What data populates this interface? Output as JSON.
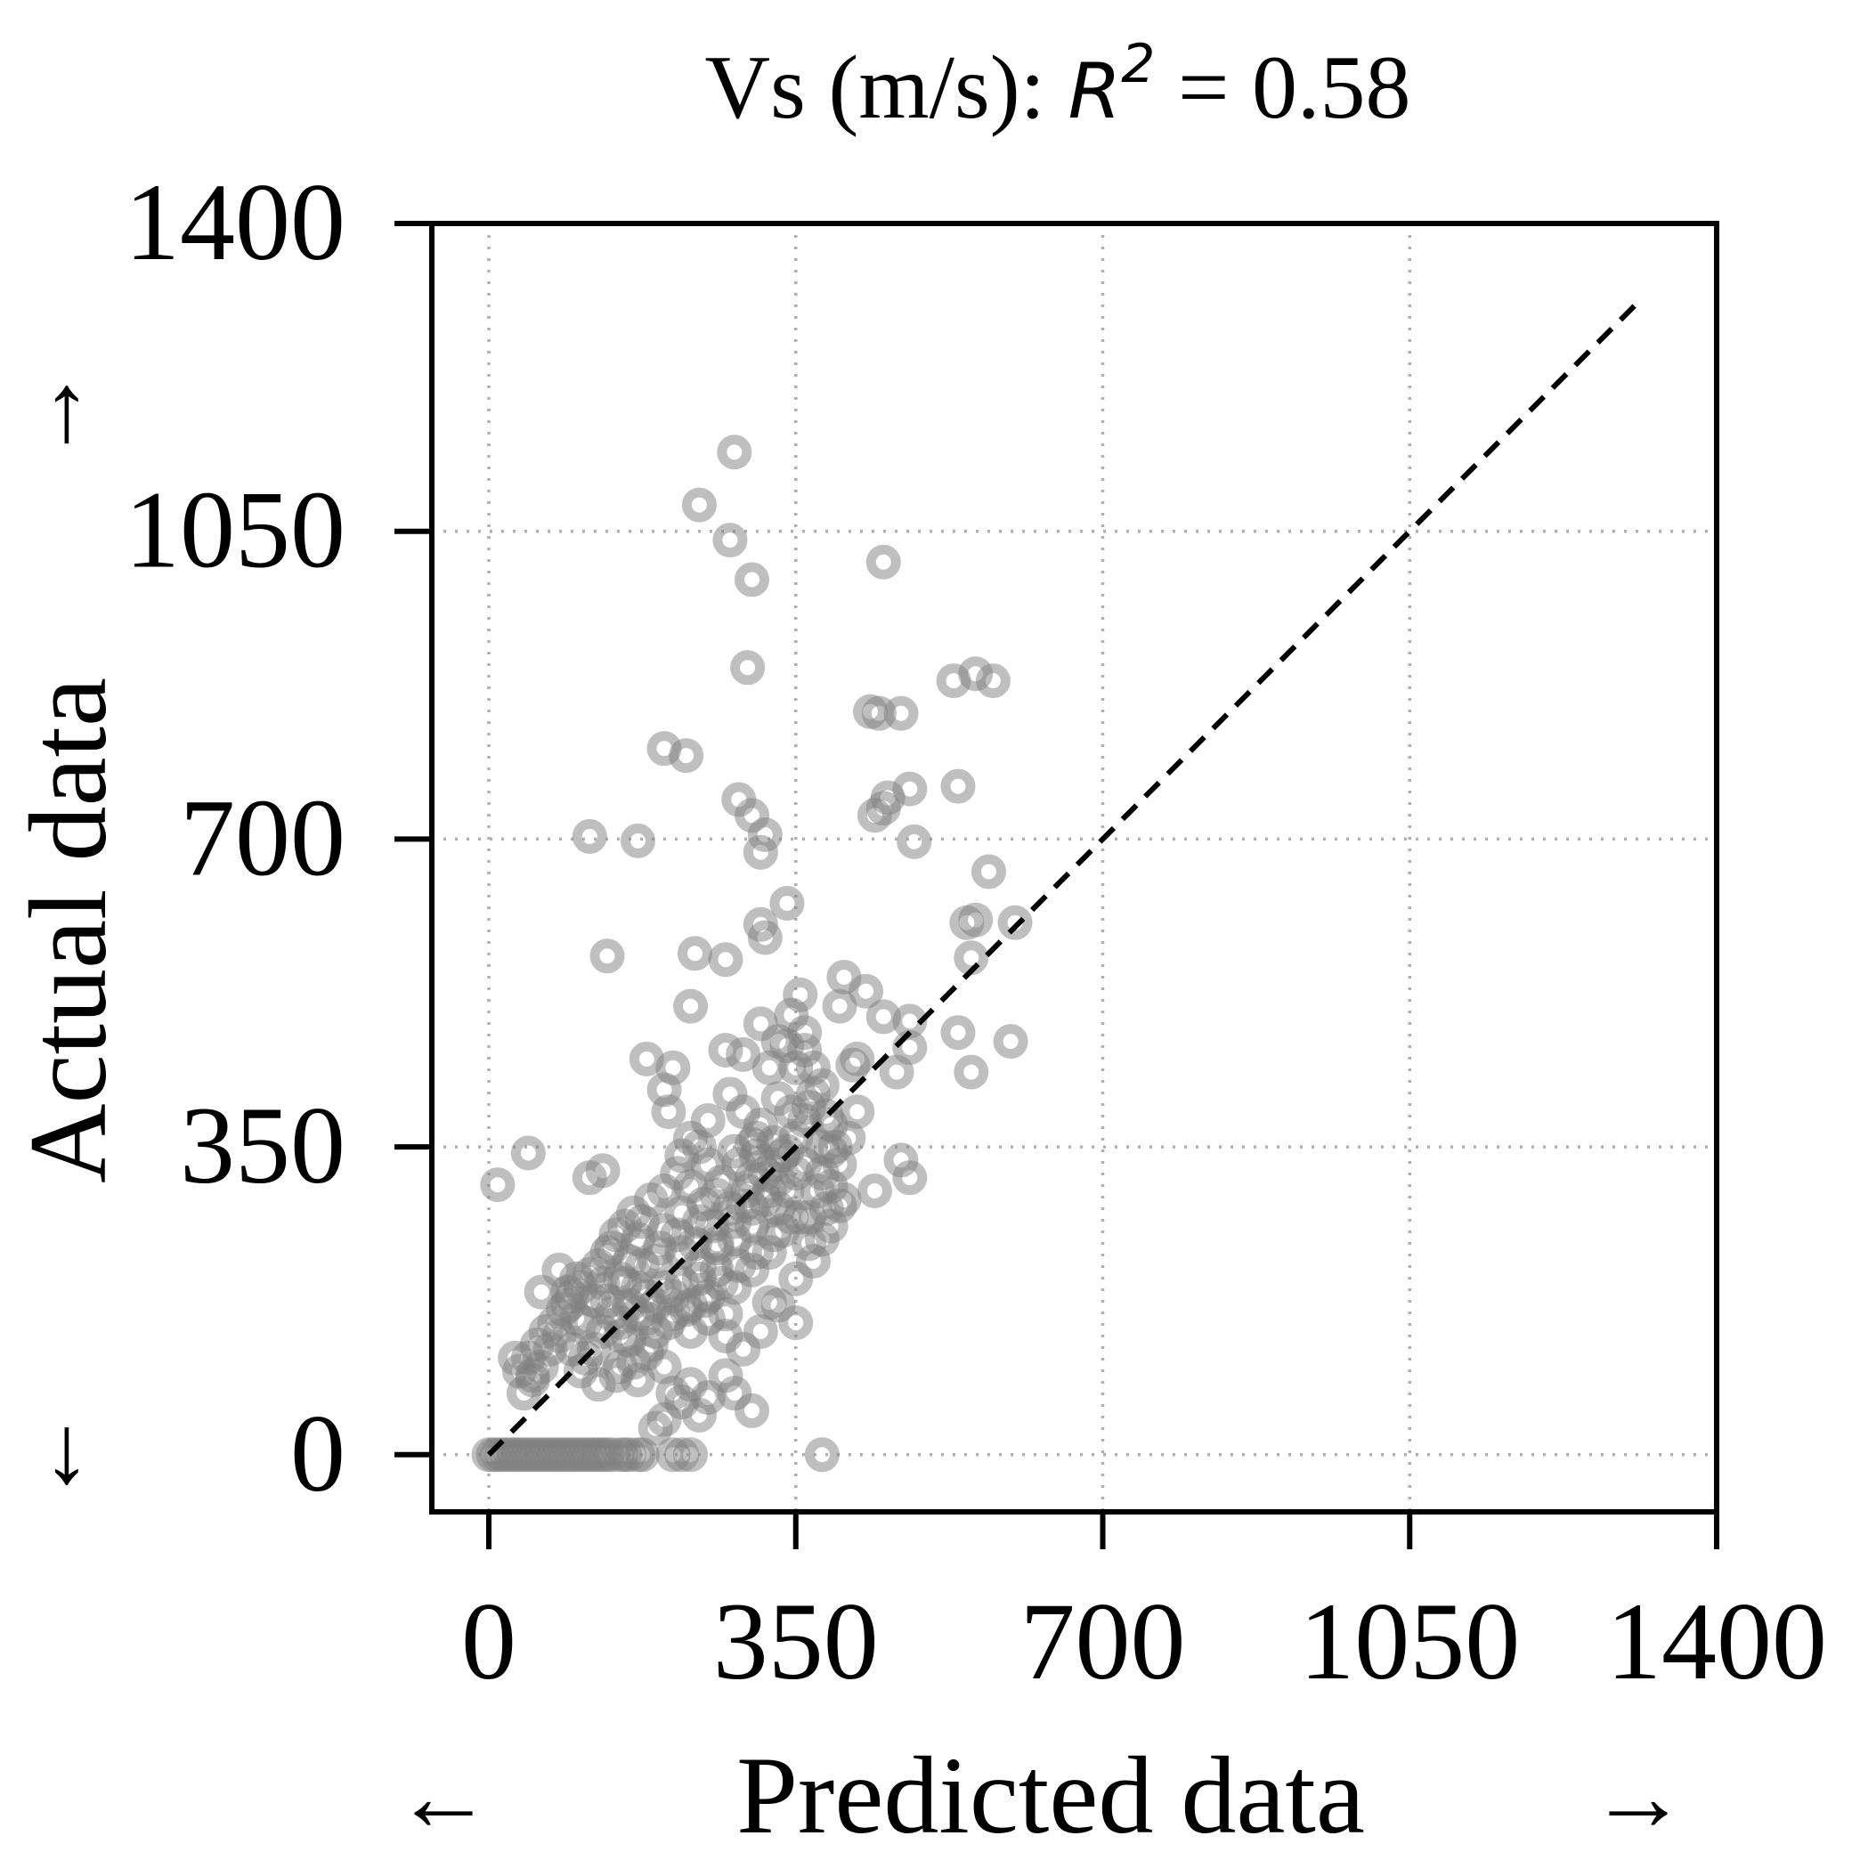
{
  "chart_data": {
    "type": "scatter",
    "title": {
      "prefix": "Vs (m/s): ",
      "r_symbol": "R",
      "r_exponent": "2",
      "suffix": " = 0.58"
    },
    "xlabel": "Predicted data",
    "ylabel": "Actual data",
    "arrows": {
      "x_left": "←",
      "x_right": "→",
      "y_up": "↑",
      "y_down": "↓"
    },
    "xlim": [
      -65,
      1400
    ],
    "ylim": [
      -65,
      1400
    ],
    "xticks": [
      "0",
      "350",
      "700",
      "1050",
      "1400"
    ],
    "yticks": [
      "0",
      "350",
      "700",
      "1050",
      "1400"
    ],
    "grid": true,
    "grid_style": "dotted",
    "point_color": "#808080",
    "line_color": "#000000",
    "reference_line": {
      "style": "dashed",
      "x": [
        0,
        1310
      ],
      "y": [
        0,
        1310
      ]
    },
    "series": [
      {
        "points": [
          [
            0,
            0
          ],
          [
            5,
            0
          ],
          [
            10,
            0
          ],
          [
            15,
            0
          ],
          [
            20,
            0
          ],
          [
            25,
            0
          ],
          [
            30,
            0
          ],
          [
            35,
            0
          ],
          [
            40,
            0
          ],
          [
            45,
            0
          ],
          [
            50,
            0
          ],
          [
            55,
            0
          ],
          [
            60,
            0
          ],
          [
            65,
            0
          ],
          [
            70,
            0
          ],
          [
            75,
            0
          ],
          [
            80,
            0
          ],
          [
            85,
            0
          ],
          [
            90,
            0
          ],
          [
            95,
            0
          ],
          [
            100,
            0
          ],
          [
            105,
            0
          ],
          [
            110,
            0
          ],
          [
            115,
            0
          ],
          [
            120,
            0
          ],
          [
            125,
            0
          ],
          [
            130,
            0
          ],
          [
            135,
            0
          ],
          [
            140,
            0
          ],
          [
            150,
            0
          ],
          [
            155,
            0
          ],
          [
            160,
            0
          ],
          [
            170,
            0
          ],
          [
            175,
            0
          ],
          [
            210,
            0
          ],
          [
            220,
            0
          ],
          [
            230,
            0
          ],
          [
            380,
            0
          ],
          [
            10,
            307
          ],
          [
            45,
            343
          ],
          [
            115,
            315
          ],
          [
            130,
            323
          ],
          [
            115,
            703
          ],
          [
            170,
            698
          ],
          [
            135,
            567
          ],
          [
            200,
            803
          ],
          [
            225,
            795
          ],
          [
            235,
            570
          ],
          [
            230,
            510
          ],
          [
            240,
            1080
          ],
          [
            280,
            1140
          ],
          [
            275,
            1040
          ],
          [
            300,
            995
          ],
          [
            295,
            895
          ],
          [
            285,
            745
          ],
          [
            300,
            727
          ],
          [
            315,
            705
          ],
          [
            310,
            685
          ],
          [
            340,
            627
          ],
          [
            310,
            603
          ],
          [
            315,
            588
          ],
          [
            270,
            563
          ],
          [
            450,
            1015
          ],
          [
            435,
            845
          ],
          [
            445,
            843
          ],
          [
            470,
            843
          ],
          [
            455,
            747
          ],
          [
            440,
            727
          ],
          [
            450,
            735
          ],
          [
            480,
            757
          ],
          [
            485,
            697
          ],
          [
            530,
            880
          ],
          [
            575,
            880
          ],
          [
            555,
            888
          ],
          [
            535,
            760
          ],
          [
            570,
            663
          ],
          [
            545,
            605
          ],
          [
            555,
            608
          ],
          [
            600,
            605
          ],
          [
            550,
            565
          ],
          [
            595,
            470
          ],
          [
            550,
            435
          ],
          [
            535,
            480
          ],
          [
            480,
            493
          ],
          [
            465,
            435
          ],
          [
            480,
            463
          ],
          [
            450,
            498
          ],
          [
            430,
            527
          ],
          [
            405,
            543
          ],
          [
            400,
            510
          ],
          [
            355,
            523
          ],
          [
            420,
            450
          ],
          [
            415,
            443
          ],
          [
            440,
            300
          ],
          [
            470,
            335
          ],
          [
            480,
            315
          ],
          [
            400,
            283
          ],
          [
            380,
            320
          ],
          [
            390,
            375
          ],
          [
            300,
            353
          ],
          [
            330,
            313
          ],
          [
            290,
            283
          ],
          [
            320,
            173
          ],
          [
            350,
            150
          ],
          [
            60,
            185
          ],
          [
            30,
            110
          ],
          [
            50,
            90
          ],
          [
            80,
            210
          ],
          [
            90,
            185
          ],
          [
            100,
            155
          ],
          [
            150,
            135
          ],
          [
            180,
            155
          ],
          [
            170,
            190
          ],
          [
            210,
            70
          ],
          [
            220,
            60
          ],
          [
            230,
            80
          ],
          [
            250,
            65
          ],
          [
            270,
            90
          ],
          [
            280,
            70
          ],
          [
            300,
            50
          ],
          [
            200,
            40
          ],
          [
            240,
            45
          ],
          [
            190,
            30
          ],
          [
            180,
            450
          ],
          [
            200,
            415
          ],
          [
            210,
            440
          ],
          [
            205,
            390
          ],
          [
            220,
            340
          ],
          [
            230,
            305
          ],
          [
            250,
            330
          ],
          [
            270,
            460
          ],
          [
            290,
            455
          ],
          [
            320,
            440
          ],
          [
            340,
            465
          ],
          [
            360,
            480
          ],
          [
            330,
            405
          ],
          [
            310,
            375
          ],
          [
            350,
            360
          ],
          [
            370,
            410
          ],
          [
            260,
            295
          ],
          [
            280,
            345
          ],
          [
            300,
            315
          ],
          [
            315,
            290
          ],
          [
            335,
            255
          ],
          [
            355,
            270
          ],
          [
            375,
            300
          ],
          [
            365,
            240
          ],
          [
            380,
            245
          ],
          [
            390,
            305
          ],
          [
            320,
            230
          ],
          [
            300,
            210
          ],
          [
            280,
            245
          ],
          [
            260,
            235
          ],
          [
            240,
            265
          ],
          [
            220,
            275
          ],
          [
            200,
            255
          ],
          [
            190,
            220
          ],
          [
            170,
            245
          ],
          [
            160,
            220
          ],
          [
            150,
            200
          ],
          [
            140,
            235
          ],
          [
            130,
            195
          ],
          [
            120,
            175
          ],
          [
            110,
            150
          ],
          [
            100,
            200
          ],
          [
            90,
            170
          ],
          [
            80,
            135
          ],
          [
            70,
            120
          ],
          [
            60,
            100
          ],
          [
            50,
            85
          ],
          [
            40,
            70
          ],
          [
            150,
            100
          ],
          [
            170,
            85
          ],
          [
            160,
            130
          ],
          [
            180,
            115
          ],
          [
            200,
            100
          ],
          [
            190,
            140
          ],
          [
            210,
            160
          ],
          [
            230,
            140
          ],
          [
            250,
            180
          ],
          [
            270,
            160
          ],
          [
            240,
            200
          ],
          [
            220,
            230
          ],
          [
            260,
            210
          ],
          [
            280,
            190
          ],
          [
            300,
            260
          ],
          [
            330,
            280
          ],
          [
            350,
            320
          ],
          [
            340,
            345
          ],
          [
            360,
            380
          ],
          [
            325,
            330
          ],
          [
            305,
            360
          ],
          [
            290,
            390
          ],
          [
            275,
            410
          ],
          [
            250,
            380
          ],
          [
            240,
            350
          ],
          [
            230,
            360
          ],
          [
            215,
            320
          ],
          [
            200,
            300
          ],
          [
            185,
            290
          ],
          [
            175,
            265
          ],
          [
            165,
            275
          ],
          [
            155,
            260
          ],
          [
            145,
            250
          ],
          [
            135,
            230
          ],
          [
            125,
            215
          ],
          [
            115,
            205
          ],
          [
            105,
            190
          ],
          [
            95,
            180
          ],
          [
            85,
            165
          ],
          [
            75,
            150
          ],
          [
            65,
            140
          ],
          [
            55,
            125
          ],
          [
            45,
            110
          ],
          [
            35,
            95
          ],
          [
            120,
            120
          ],
          [
            140,
            160
          ],
          [
            160,
            170
          ],
          [
            180,
            180
          ],
          [
            200,
            190
          ],
          [
            220,
            195
          ],
          [
            240,
            215
          ],
          [
            260,
            240
          ],
          [
            280,
            265
          ],
          [
            300,
            280
          ],
          [
            320,
            300
          ],
          [
            340,
            300
          ],
          [
            360,
            330
          ],
          [
            380,
            350
          ],
          [
            390,
            345
          ],
          [
            400,
            330
          ],
          [
            410,
            360
          ],
          [
            420,
            390
          ],
          [
            380,
            420
          ],
          [
            370,
            440
          ],
          [
            350,
            440
          ],
          [
            330,
            470
          ],
          [
            310,
            490
          ],
          [
            345,
            500
          ],
          [
            360,
            460
          ],
          [
            395,
            350
          ],
          [
            385,
            280
          ],
          [
            365,
            270
          ],
          [
            345,
            270
          ],
          [
            325,
            250
          ],
          [
            305,
            230
          ],
          [
            285,
            215
          ],
          [
            265,
            195
          ],
          [
            245,
            175
          ],
          [
            225,
            165
          ],
          [
            205,
            150
          ],
          [
            185,
            125
          ],
          [
            165,
            105
          ],
          [
            145,
            90
          ],
          [
            125,
            80
          ],
          [
            105,
            95
          ],
          [
            95,
            120
          ],
          [
            110,
            110
          ],
          [
            130,
            140
          ],
          [
            150,
            150
          ],
          [
            170,
            160
          ],
          [
            190,
            170
          ],
          [
            210,
            180
          ],
          [
            230,
            170
          ],
          [
            250,
            155
          ],
          [
            270,
            135
          ],
          [
            290,
            120
          ],
          [
            310,
            140
          ],
          [
            330,
            170
          ],
          [
            350,
            200
          ],
          [
            370,
            220
          ],
          [
            390,
            260
          ],
          [
            405,
            290
          ],
          [
            245,
            285
          ],
          [
            265,
            310
          ],
          [
            285,
            330
          ],
          [
            305,
            340
          ],
          [
            325,
            355
          ],
          [
            345,
            390
          ],
          [
            365,
            395
          ],
          [
            385,
            385
          ],
          [
            235,
            240
          ],
          [
            255,
            260
          ],
          [
            275,
            280
          ],
          [
            295,
            300
          ],
          [
            315,
            320
          ],
          [
            335,
            340
          ],
          [
            215,
            250
          ],
          [
            195,
            235
          ],
          [
            175,
            215
          ],
          [
            155,
            195
          ],
          [
            135,
            175
          ]
        ]
      }
    ]
  }
}
